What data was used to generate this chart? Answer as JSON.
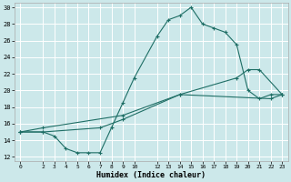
{
  "xlabel": "Humidex (Indice chaleur)",
  "bg_color": "#cce8ea",
  "grid_color": "#ffffff",
  "line_color": "#1e6e65",
  "xlim": [
    -0.5,
    23.5
  ],
  "ylim": [
    11.5,
    30.5
  ],
  "xticks": [
    0,
    2,
    3,
    4,
    5,
    6,
    7,
    8,
    9,
    10,
    12,
    13,
    14,
    15,
    16,
    17,
    18,
    19,
    20,
    21,
    22,
    23
  ],
  "yticks": [
    12,
    14,
    16,
    18,
    20,
    22,
    24,
    26,
    28,
    30
  ],
  "curve1_x": [
    0,
    2,
    3,
    4,
    5,
    6,
    7,
    8,
    9,
    10,
    12,
    13,
    14,
    15,
    16,
    17,
    18,
    19,
    20,
    21,
    22,
    23
  ],
  "curve1_y": [
    15.0,
    15.0,
    14.5,
    13.0,
    12.5,
    12.5,
    12.5,
    15.5,
    18.5,
    21.5,
    26.5,
    28.5,
    29.0,
    30.0,
    28.0,
    27.5,
    27.0,
    25.5,
    20.0,
    19.0,
    19.5,
    19.5
  ],
  "curve2_x": [
    0,
    2,
    7,
    9,
    14,
    19,
    20,
    21,
    23
  ],
  "curve2_y": [
    15.0,
    15.0,
    15.5,
    16.5,
    19.5,
    21.5,
    22.5,
    22.5,
    19.5
  ],
  "curve3_x": [
    0,
    2,
    9,
    14,
    22,
    23
  ],
  "curve3_y": [
    15.0,
    15.5,
    17.0,
    19.5,
    19.0,
    19.5
  ]
}
